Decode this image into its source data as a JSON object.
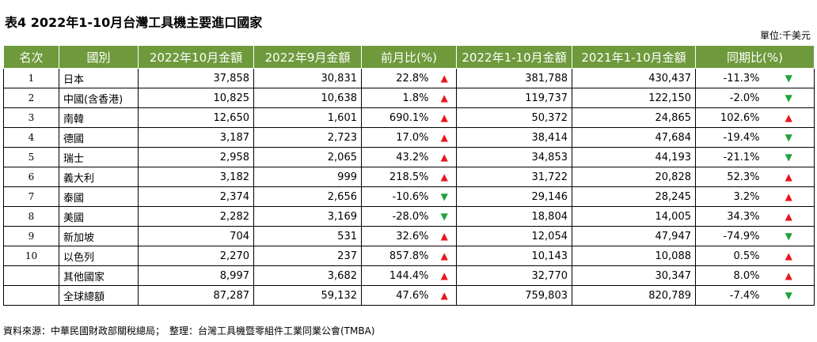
{
  "title": "表4 2022年1-10月台灣工具機主要進口國家",
  "unit": "單位:千美元",
  "headers": {
    "rank": "名次",
    "country": "國別",
    "oct2022": "2022年10月金額",
    "sep2022": "2022年9月金額",
    "mom": "前月比(%)",
    "ytd2022": "2022年1-10月金額",
    "ytd2021": "2021年1-10月金額",
    "yoy": "同期比(%)"
  },
  "arrows": {
    "up": "▲",
    "down": "▼"
  },
  "rows": [
    {
      "rank": "1",
      "country": "日本",
      "oct2022": "37,858",
      "sep2022": "30,831",
      "mom": "22.8%",
      "mom_dir": "up",
      "ytd2022": "381,788",
      "ytd2021": "430,437",
      "yoy": "-11.3%",
      "yoy_dir": "down"
    },
    {
      "rank": "2",
      "country": "中國(含香港)",
      "oct2022": "10,825",
      "sep2022": "10,638",
      "mom": "1.8%",
      "mom_dir": "up",
      "ytd2022": "119,737",
      "ytd2021": "122,150",
      "yoy": "-2.0%",
      "yoy_dir": "down"
    },
    {
      "rank": "3",
      "country": "南韓",
      "oct2022": "12,650",
      "sep2022": "1,601",
      "mom": "690.1%",
      "mom_dir": "up",
      "ytd2022": "50,372",
      "ytd2021": "24,865",
      "yoy": "102.6%",
      "yoy_dir": "up"
    },
    {
      "rank": "4",
      "country": "德國",
      "oct2022": "3,187",
      "sep2022": "2,723",
      "mom": "17.0%",
      "mom_dir": "up",
      "ytd2022": "38,414",
      "ytd2021": "47,684",
      "yoy": "-19.4%",
      "yoy_dir": "down"
    },
    {
      "rank": "5",
      "country": "瑞士",
      "oct2022": "2,958",
      "sep2022": "2,065",
      "mom": "43.2%",
      "mom_dir": "up",
      "ytd2022": "34,853",
      "ytd2021": "44,193",
      "yoy": "-21.1%",
      "yoy_dir": "down"
    },
    {
      "rank": "6",
      "country": "義大利",
      "oct2022": "3,182",
      "sep2022": "999",
      "mom": "218.5%",
      "mom_dir": "up",
      "ytd2022": "31,722",
      "ytd2021": "20,828",
      "yoy": "52.3%",
      "yoy_dir": "up"
    },
    {
      "rank": "7",
      "country": "泰國",
      "oct2022": "2,374",
      "sep2022": "2,656",
      "mom": "-10.6%",
      "mom_dir": "down",
      "ytd2022": "29,146",
      "ytd2021": "28,245",
      "yoy": "3.2%",
      "yoy_dir": "up"
    },
    {
      "rank": "8",
      "country": "美國",
      "oct2022": "2,282",
      "sep2022": "3,169",
      "mom": "-28.0%",
      "mom_dir": "down",
      "ytd2022": "18,804",
      "ytd2021": "14,005",
      "yoy": "34.3%",
      "yoy_dir": "up"
    },
    {
      "rank": "9",
      "country": "新加坡",
      "oct2022": "704",
      "sep2022": "531",
      "mom": "32.6%",
      "mom_dir": "up",
      "ytd2022": "12,054",
      "ytd2021": "47,947",
      "yoy": "-74.9%",
      "yoy_dir": "down"
    },
    {
      "rank": "10",
      "country": "以色列",
      "oct2022": "2,270",
      "sep2022": "237",
      "mom": "857.8%",
      "mom_dir": "up",
      "ytd2022": "10,143",
      "ytd2021": "10,088",
      "yoy": "0.5%",
      "yoy_dir": "up"
    },
    {
      "rank": "",
      "country": "其他國家",
      "oct2022": "8,997",
      "sep2022": "3,682",
      "mom": "144.4%",
      "mom_dir": "up",
      "ytd2022": "32,770",
      "ytd2021": "30,347",
      "yoy": "8.0%",
      "yoy_dir": "up"
    },
    {
      "rank": "",
      "country": "全球總額",
      "oct2022": "87,287",
      "sep2022": "59,132",
      "mom": "47.6%",
      "mom_dir": "up",
      "ytd2022": "759,803",
      "ytd2021": "820,789",
      "yoy": "-7.4%",
      "yoy_dir": "down"
    }
  ],
  "colors": {
    "header_bg": "#6e9a3c",
    "up": "#e8161b",
    "down": "#1fa33a"
  },
  "source": "資料來源：中華民國財政部關稅總局；　整理：台灣工具機暨零組件工業同業公會(TMBA)"
}
